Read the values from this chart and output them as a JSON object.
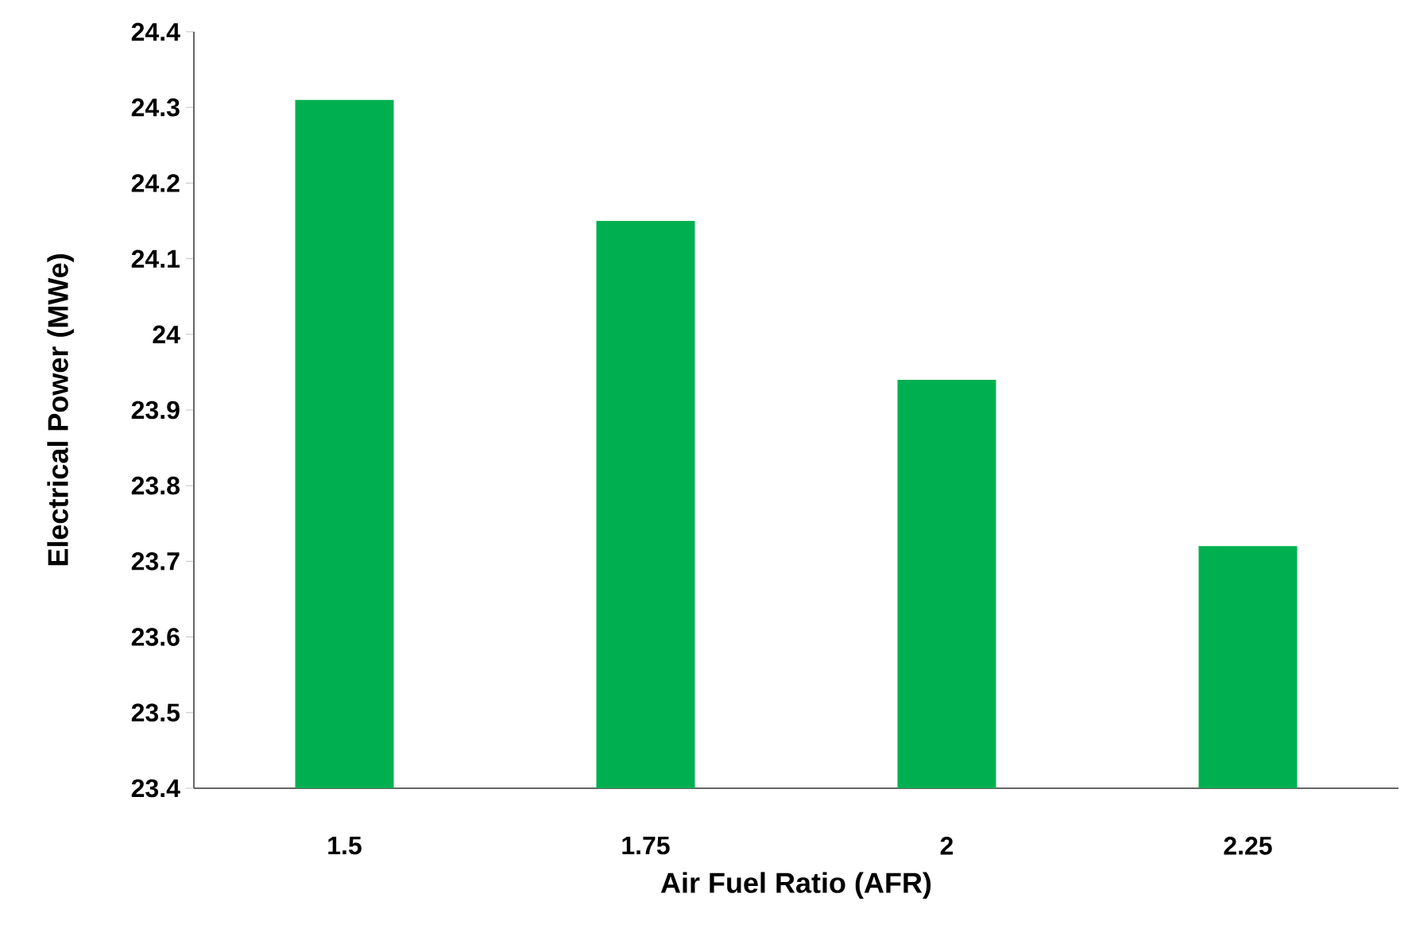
{
  "chart_data": {
    "type": "bar",
    "xlabel": "Air Fuel  Ratio (AFR)",
    "ylabel": "Electrical Power (MWe)",
    "categories": [
      "1.5",
      "1.75",
      "2",
      "2.25"
    ],
    "values": [
      24.31,
      24.15,
      23.94,
      23.72
    ],
    "color": "#00b050",
    "ylim": [
      23.4,
      24.4
    ],
    "yticks": [
      23.4,
      23.5,
      23.6,
      23.7,
      23.8,
      23.9,
      24,
      24.1,
      24.2,
      24.3,
      24.4
    ]
  }
}
